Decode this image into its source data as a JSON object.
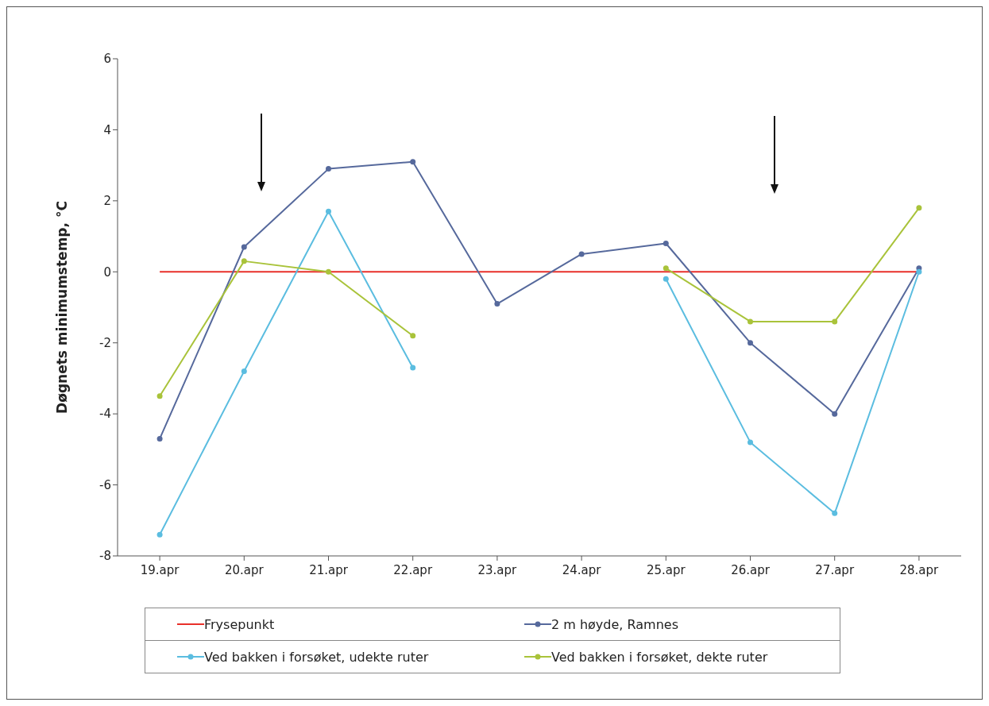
{
  "chart_data": {
    "type": "line",
    "ylabel": "Døgnets minimumstemp, °C",
    "categories": [
      "19.apr",
      "20.apr",
      "21.apr",
      "22.apr",
      "23.apr",
      "24.apr",
      "25.apr",
      "26.apr",
      "27.apr",
      "28.apr"
    ],
    "series": [
      {
        "name": "Frysepunkt",
        "color": "#e8302a",
        "marker": "none",
        "values": [
          0,
          0,
          0,
          0,
          0,
          0,
          0,
          0,
          0,
          0
        ]
      },
      {
        "name": "2 m høyde, Ramnes",
        "color": "#56699c",
        "values": [
          -4.7,
          0.7,
          2.9,
          3.1,
          -0.9,
          0.5,
          0.8,
          -2.0,
          -4.0,
          0.1
        ]
      },
      {
        "name": "Ved bakken i forsøket, udekte ruter",
        "color": "#5bbde0",
        "values": [
          -7.4,
          -2.8,
          1.7,
          -2.7,
          null,
          null,
          -0.2,
          -4.8,
          -6.8,
          0
        ]
      },
      {
        "name": "Ved bakken i forsøket, dekte ruter",
        "color": "#a9c33a",
        "values": [
          -3.5,
          0.3,
          0,
          -1.8,
          null,
          null,
          0.1,
          -1.4,
          -1.4,
          1.8
        ]
      }
    ],
    "ylim": [
      -8,
      6
    ],
    "yticks": [
      -8,
      -6,
      -4,
      -2,
      0,
      2,
      4,
      6
    ],
    "grid": false,
    "legend": "bottom",
    "marker": "circle",
    "line_style": "solid"
  }
}
